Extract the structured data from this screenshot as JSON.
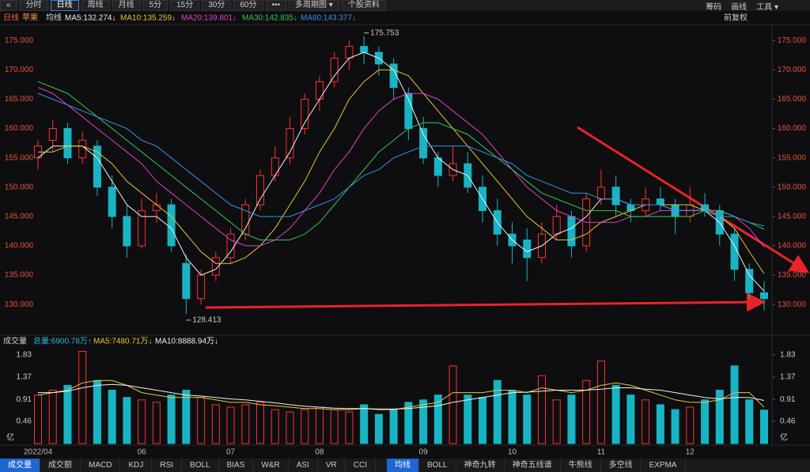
{
  "toolbar": {
    "left": [
      "«",
      "分时",
      "日线",
      "周线",
      "月线",
      "5分",
      "15分",
      "30分",
      "60分",
      "•••",
      "多周期图 ▾",
      "个股资料"
    ],
    "right": [
      "筹码",
      "画线",
      "工具 ▾"
    ]
  },
  "chart_header": {
    "period": "日线",
    "stock": "苹果",
    "indicator": "均线",
    "adjust": "前复权"
  },
  "chart_data": [
    {
      "type": "candlestick",
      "up_color": "#ff3030",
      "down_color": "#19b4c4",
      "ylim": [
        125.3,
        177.6
      ],
      "yticks": [
        {
          "value": 130,
          "label": "130.000"
        },
        {
          "value": 135,
          "label": "135.000"
        },
        {
          "value": 140,
          "label": "140.000"
        },
        {
          "value": 145,
          "label": "145.000"
        },
        {
          "value": 150,
          "label": "150.000"
        },
        {
          "value": 155,
          "label": "155.000"
        },
        {
          "value": 160,
          "label": "160.000"
        },
        {
          "value": 165,
          "label": "165.000"
        },
        {
          "value": 170,
          "label": "170.000"
        },
        {
          "value": 175,
          "label": "175.000"
        }
      ],
      "ohlc": [
        [
          155,
          158,
          153,
          157
        ],
        [
          158,
          161.5,
          156,
          160
        ],
        [
          160,
          161,
          154,
          155
        ],
        [
          155,
          159.5,
          154,
          158
        ],
        [
          157,
          158,
          148.5,
          150
        ],
        [
          150,
          152,
          143,
          145
        ],
        [
          145,
          147,
          138,
          140
        ],
        [
          140,
          148,
          139.5,
          146
        ],
        [
          146,
          149,
          144,
          147
        ],
        [
          147,
          148,
          139,
          140
        ],
        [
          137,
          138.5,
          128.413,
          131
        ],
        [
          131,
          136,
          130,
          135
        ],
        [
          135,
          139,
          134,
          138
        ],
        [
          138,
          143,
          137,
          142
        ],
        [
          142,
          148,
          141,
          147
        ],
        [
          147,
          153,
          146,
          152
        ],
        [
          152,
          157,
          151,
          155
        ],
        [
          155,
          162,
          154,
          160
        ],
        [
          160,
          166,
          159,
          165
        ],
        [
          165,
          169,
          163,
          168
        ],
        [
          168,
          173,
          167,
          172
        ],
        [
          172,
          175,
          170,
          174
        ],
        [
          174,
          175.753,
          171,
          173
        ],
        [
          173,
          174,
          169,
          171
        ],
        [
          171,
          172,
          165,
          167
        ],
        [
          166,
          167,
          158,
          160
        ],
        [
          160,
          162,
          154,
          155
        ],
        [
          155,
          156,
          150,
          152
        ],
        [
          152,
          157,
          151,
          154
        ],
        [
          154,
          156,
          149,
          150
        ],
        [
          150,
          152,
          144,
          146
        ],
        [
          146,
          148,
          140,
          142
        ],
        [
          142,
          144,
          137,
          140
        ],
        [
          141,
          143,
          134,
          138
        ],
        [
          138,
          144,
          137,
          142
        ],
        [
          142,
          147,
          141,
          145
        ],
        [
          145,
          146,
          138,
          140
        ],
        [
          140,
          149,
          139,
          148
        ],
        [
          148,
          153,
          147,
          150
        ],
        [
          150,
          152,
          145,
          147
        ],
        [
          147,
          148,
          144,
          146
        ],
        [
          146,
          150,
          145,
          148
        ],
        [
          148,
          150,
          146,
          147
        ],
        [
          147,
          148,
          142,
          145
        ],
        [
          145,
          150,
          144,
          147
        ],
        [
          147,
          149,
          145,
          146
        ],
        [
          146,
          147,
          140,
          142
        ],
        [
          142,
          143,
          134,
          136
        ],
        [
          136,
          137,
          131,
          132
        ],
        [
          132,
          134,
          129,
          131
        ]
      ],
      "series": [
        {
          "name": "MA5:132.274↓",
          "color": "#f0f0f0",
          "values": [
            155,
            157,
            157,
            157,
            155,
            151,
            147,
            145,
            145,
            143,
            138,
            135,
            136,
            139,
            143,
            148,
            152,
            156,
            161,
            165,
            169,
            172,
            173,
            172,
            170,
            165,
            159,
            155,
            153,
            152,
            148,
            144,
            141,
            139,
            140,
            142,
            143,
            145,
            148,
            148,
            147,
            147,
            147,
            146,
            146,
            146,
            144,
            140,
            135,
            132.274
          ]
        },
        {
          "name": "MA10:135.259↓",
          "color": "#e8c43a",
          "values": [
            156,
            156,
            157,
            157,
            156,
            154,
            151,
            149,
            147,
            145,
            142,
            139,
            137,
            137,
            138,
            140,
            143,
            147,
            151,
            156,
            160,
            165,
            168,
            170,
            170,
            169,
            166,
            163,
            160,
            157,
            154,
            151,
            148,
            145,
            143,
            141,
            141,
            142,
            144,
            145,
            146,
            147,
            147,
            147,
            147,
            146,
            145,
            143,
            139,
            135.259
          ]
        },
        {
          "name": "MA20:139.801↓",
          "color": "#e040c8",
          "values": [
            167,
            166,
            164,
            162,
            160,
            158,
            156,
            154,
            151,
            149,
            147,
            145,
            143,
            141,
            140,
            140,
            141,
            143,
            146,
            149,
            153,
            156,
            160,
            163,
            165,
            166,
            166,
            165,
            163,
            161,
            159,
            156,
            153,
            150,
            148,
            146,
            145,
            144,
            144,
            144,
            145,
            145,
            146,
            146,
            146,
            146,
            146,
            145,
            143,
            139.801
          ]
        },
        {
          "name": "MA30:142.835↓",
          "color": "#30c850",
          "values": [
            168,
            167,
            166,
            164,
            162,
            160,
            158,
            156,
            154,
            152,
            150,
            148,
            146,
            144,
            142,
            141,
            141,
            141,
            142,
            144,
            147,
            150,
            153,
            156,
            158,
            160,
            161,
            161,
            160,
            159,
            157,
            155,
            153,
            151,
            149,
            148,
            147,
            146,
            146,
            146,
            145,
            145,
            145,
            145,
            145,
            146,
            146,
            145,
            144,
            142.835
          ]
        },
        {
          "name": "MA60:143.377↓",
          "color": "#3a8ee8",
          "values": [
            166,
            165,
            164,
            163,
            162,
            161,
            160,
            158,
            157,
            155,
            153,
            151,
            149,
            147,
            146,
            145,
            145,
            145,
            146,
            147,
            148,
            150,
            152,
            153,
            155,
            156,
            157,
            157,
            157,
            157,
            156,
            155,
            154,
            152,
            151,
            150,
            149,
            149,
            148,
            148,
            147,
            147,
            147,
            146,
            146,
            146,
            145,
            145,
            144,
            143.377
          ]
        }
      ]
    },
    {
      "type": "bar",
      "title": "成交量",
      "summary": "总量:6900.78万↑",
      "unit": "亿",
      "ylim": [
        0,
        1.94
      ],
      "yticks": [
        0.46,
        0.91,
        1.37,
        1.83
      ],
      "categories": [
        "2022/04",
        null,
        null,
        null,
        null,
        null,
        null,
        "06",
        null,
        null,
        null,
        null,
        null,
        "07",
        null,
        null,
        null,
        null,
        null,
        "08",
        null,
        null,
        null,
        null,
        null,
        null,
        "09",
        null,
        null,
        null,
        null,
        null,
        "10",
        null,
        null,
        null,
        null,
        null,
        "11",
        null,
        null,
        null,
        null,
        null,
        "12",
        null,
        null,
        null,
        null,
        null
      ],
      "values": [
        1.0,
        1.1,
        1.2,
        1.9,
        1.3,
        1.1,
        0.95,
        0.9,
        0.85,
        1.0,
        1.1,
        0.95,
        0.8,
        0.75,
        0.8,
        0.85,
        0.7,
        0.65,
        0.7,
        0.75,
        0.7,
        0.65,
        0.8,
        0.6,
        0.7,
        0.85,
        0.9,
        1.0,
        1.6,
        1.0,
        0.95,
        1.3,
        1.1,
        1.0,
        1.4,
        0.9,
        1.0,
        1.3,
        1.7,
        1.2,
        1.0,
        0.9,
        0.8,
        0.7,
        0.75,
        0.9,
        1.1,
        1.6,
        0.9,
        0.690078
      ],
      "series": [
        {
          "name": "MA5:7480.71万↓",
          "color": "#e8c43a",
          "values": [
            1.0,
            1.05,
            1.1,
            1.25,
            1.3,
            1.3,
            1.2,
            1.05,
            1.0,
            0.95,
            0.95,
            0.95,
            0.9,
            0.85,
            0.85,
            0.8,
            0.78,
            0.75,
            0.72,
            0.72,
            0.7,
            0.7,
            0.72,
            0.7,
            0.7,
            0.75,
            0.8,
            0.85,
            1.05,
            1.05,
            1.05,
            1.1,
            1.1,
            1.05,
            1.15,
            1.1,
            1.05,
            1.1,
            1.2,
            1.25,
            1.2,
            1.1,
            1.0,
            0.9,
            0.85,
            0.85,
            0.9,
            1.05,
            1.05,
            0.748071
          ]
        },
        {
          "name": "MA10:8888.94万↓",
          "color": "#f0f0f0",
          "values": [
            1.05,
            1.05,
            1.08,
            1.15,
            1.2,
            1.22,
            1.2,
            1.15,
            1.1,
            1.05,
            1.0,
            0.98,
            0.95,
            0.92,
            0.9,
            0.87,
            0.84,
            0.8,
            0.77,
            0.75,
            0.73,
            0.72,
            0.72,
            0.71,
            0.71,
            0.72,
            0.75,
            0.78,
            0.85,
            0.9,
            0.95,
            1.0,
            1.05,
            1.06,
            1.08,
            1.1,
            1.1,
            1.1,
            1.12,
            1.15,
            1.15,
            1.12,
            1.1,
            1.05,
            1.0,
            0.95,
            0.92,
            0.95,
            0.95,
            0.888894
          ]
        }
      ]
    }
  ],
  "tabs": {
    "left": [
      "成交量",
      "成交额",
      "MACD",
      "KDJ",
      "RSI",
      "BOLL",
      "BIAS",
      "W&R",
      "ASI",
      "VR",
      "CCI"
    ],
    "right": [
      "均线",
      "BOLL",
      "神奇九转",
      "神奇五线谱",
      "牛熊线",
      "多空线",
      "EXPMA"
    ]
  }
}
